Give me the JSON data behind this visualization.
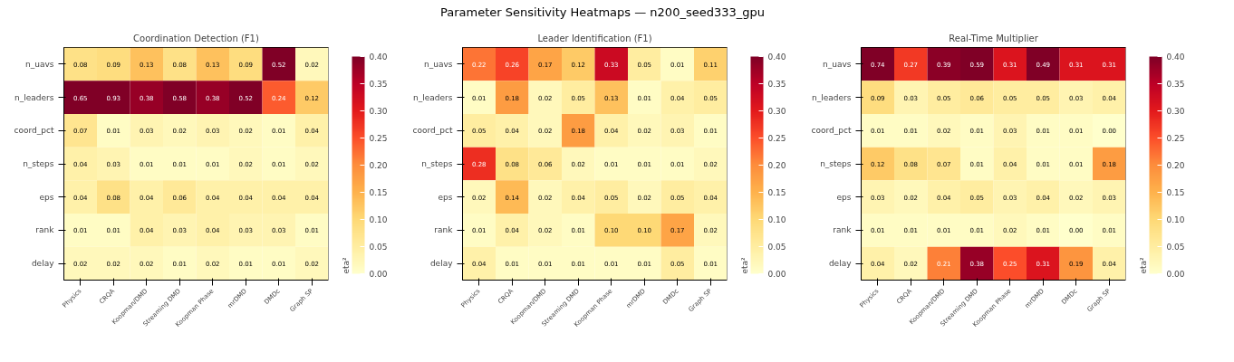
{
  "chart_data": [
    {
      "type": "heatmap",
      "title": "Coordination Detection (F1)",
      "annotations": [
        "Parameter Sensitivity Heatmaps — n200_seed333_gpu"
      ],
      "categories": [
        "Physics",
        "CRQA",
        "Koopman/DMD",
        "Streaming DMD",
        "Koopman Phase",
        "mrDMD",
        "DMDc",
        "Graph SP"
      ],
      "y_categories": [
        "n_uavs",
        "n_leaders",
        "coord_pct",
        "n_steps",
        "eps",
        "rank",
        "delay"
      ],
      "cells": [
        [
          0.08,
          0.09,
          0.13,
          0.08,
          0.13,
          0.09,
          0.52,
          0.02
        ],
        [
          0.65,
          0.93,
          0.38,
          0.58,
          0.38,
          0.52,
          0.24,
          0.12
        ],
        [
          0.07,
          0.01,
          0.03,
          0.02,
          0.03,
          0.02,
          0.01,
          0.04
        ],
        [
          0.04,
          0.03,
          0.01,
          0.01,
          0.01,
          0.02,
          0.01,
          0.02
        ],
        [
          0.04,
          0.08,
          0.04,
          0.06,
          0.04,
          0.04,
          0.04,
          0.04
        ],
        [
          0.01,
          0.01,
          0.04,
          0.03,
          0.04,
          0.03,
          0.03,
          0.01
        ],
        [
          0.02,
          0.02,
          0.02,
          0.01,
          0.02,
          0.01,
          0.01,
          0.02
        ]
      ],
      "data_labels": true,
      "clabel": "eta²",
      "clim": [
        0,
        0.4
      ],
      "cticks": [
        {
          "value": 0,
          "label": "0.00"
        },
        {
          "value": 0.05,
          "label": "0.05"
        },
        {
          "value": 0.1,
          "label": "0.10"
        },
        {
          "value": 0.15,
          "label": "0.15"
        },
        {
          "value": 0.2,
          "label": "0.20"
        },
        {
          "value": 0.25,
          "label": "0.25"
        },
        {
          "value": 0.3,
          "label": "0.30"
        },
        {
          "value": 0.35,
          "label": "0.35"
        },
        {
          "value": 0.4,
          "label": "0.40"
        }
      ]
    },
    {
      "type": "heatmap",
      "title": "Leader Identification (F1)",
      "categories": [
        "Physics",
        "CRQA",
        "Koopman/DMD",
        "Streaming DMD",
        "Koopman Phase",
        "mrDMD",
        "DMDc",
        "Graph SP"
      ],
      "y_categories": [
        "n_uavs",
        "n_leaders",
        "coord_pct",
        "n_steps",
        "eps",
        "rank",
        "delay"
      ],
      "cells": [
        [
          0.22,
          0.26,
          0.17,
          0.12,
          0.33,
          0.05,
          0.01,
          0.11
        ],
        [
          0.01,
          0.18,
          0.02,
          0.05,
          0.13,
          0.01,
          0.04,
          0.05
        ],
        [
          0.05,
          0.04,
          0.02,
          0.18,
          0.04,
          0.02,
          0.03,
          0.01
        ],
        [
          0.28,
          0.08,
          0.06,
          0.02,
          0.01,
          0.01,
          0.01,
          0.02
        ],
        [
          0.02,
          0.14,
          0.02,
          0.04,
          0.05,
          0.02,
          0.05,
          0.04
        ],
        [
          0.01,
          0.04,
          0.02,
          0.01,
          0.1,
          0.1,
          0.17,
          0.02
        ],
        [
          0.04,
          0.01,
          0.01,
          0.01,
          0.01,
          0.01,
          0.05,
          0.01
        ]
      ],
      "cell_labels": [
        [
          "0.22",
          "0.26",
          "0.17",
          "0.12",
          "0.33",
          "0.05",
          "0.01",
          "0.11"
        ],
        [
          "0.01",
          "0.18",
          "0.02",
          "0.05",
          "0.13",
          "0.01",
          "0.04",
          "0.05"
        ],
        [
          "0.05",
          "0.04",
          "0.02",
          "0.18",
          "0.04",
          "0.02",
          "0.03",
          "0.01"
        ],
        [
          "0.28",
          "0.08",
          "0.06",
          "0.02",
          "0.01",
          "0.01",
          "0.01",
          "0.02"
        ],
        [
          "0.02",
          "0.14",
          "0.02",
          "0.04",
          "0.05",
          "0.02",
          "0.05",
          "0.04"
        ],
        [
          "0.01",
          "0.04",
          "0.02",
          "0.01",
          "0.10",
          "0.10",
          "0.17",
          "0.02"
        ],
        [
          "0.04",
          "0.01",
          "0.01",
          "0.01",
          "0.01",
          "0.01",
          "0.05",
          "0.01"
        ]
      ],
      "data_labels": true,
      "clabel": "eta²",
      "clim": [
        0,
        0.4
      ],
      "cticks": [
        {
          "value": 0,
          "label": "0.00"
        },
        {
          "value": 0.05,
          "label": "0.05"
        },
        {
          "value": 0.1,
          "label": "0.10"
        },
        {
          "value": 0.15,
          "label": "0.15"
        },
        {
          "value": 0.2,
          "label": "0.20"
        },
        {
          "value": 0.25,
          "label": "0.25"
        },
        {
          "value": 0.3,
          "label": "0.30"
        },
        {
          "value": 0.35,
          "label": "0.35"
        },
        {
          "value": 0.4,
          "label": "0.40"
        }
      ]
    },
    {
      "type": "heatmap",
      "title": "Real-Time Multiplier",
      "categories": [
        "Physics",
        "CRQA",
        "Koopman/DMD",
        "Streaming DMD",
        "Koopman Phase",
        "mrDMD",
        "DMDc",
        "Graph SP"
      ],
      "y_categories": [
        "n_uavs",
        "n_leaders",
        "coord_pct",
        "n_steps",
        "eps",
        "rank",
        "delay"
      ],
      "cells": [
        [
          0.74,
          0.27,
          0.39,
          0.59,
          0.31,
          0.49,
          0.31,
          0.31
        ],
        [
          0.09,
          0.03,
          0.05,
          0.06,
          0.05,
          0.05,
          0.03,
          0.04
        ],
        [
          0.01,
          0.01,
          0.02,
          0.01,
          0.03,
          0.01,
          0.01,
          0.0
        ],
        [
          0.12,
          0.08,
          0.07,
          0.01,
          0.04,
          0.01,
          0.01,
          0.18
        ],
        [
          0.03,
          0.02,
          0.04,
          0.05,
          0.03,
          0.04,
          0.02,
          0.03
        ],
        [
          0.01,
          0.01,
          0.01,
          0.01,
          0.02,
          0.01,
          0.0,
          0.01
        ],
        [
          0.04,
          0.02,
          0.21,
          0.38,
          0.25,
          0.31,
          0.19,
          0.04
        ]
      ],
      "cell_labels": [
        [
          "0.74",
          "0.27",
          "0.39",
          "0.59",
          "0.31",
          "0.49",
          "0.31",
          "0.31"
        ],
        [
          "0.09",
          "0.03",
          "0.05",
          "0.06",
          "0.05",
          "0.05",
          "0.03",
          "0.04"
        ],
        [
          "0.01",
          "0.01",
          "0.02",
          "0.01",
          "0.03",
          "0.01",
          "0.01",
          "0.00"
        ],
        [
          "0.12",
          "0.08",
          "0.07",
          "0.01",
          "0.04",
          "0.01",
          "0.01",
          "0.18"
        ],
        [
          "0.03",
          "0.02",
          "0.04",
          "0.05",
          "0.03",
          "0.04",
          "0.02",
          "0.03"
        ],
        [
          "0.01",
          "0.01",
          "0.01",
          "0.01",
          "0.02",
          "0.01",
          "0.00",
          "0.01"
        ],
        [
          "0.04",
          "0.02",
          "0.21",
          "0.38",
          "0.25",
          "0.31",
          "0.19",
          "0.04"
        ]
      ],
      "data_labels": true,
      "clabel": "eta²",
      "clim": [
        0,
        0.4
      ],
      "cticks": [
        {
          "value": 0,
          "label": "0.00"
        },
        {
          "value": 0.05,
          "label": "0.05"
        },
        {
          "value": 0.1,
          "label": "0.10"
        },
        {
          "value": 0.15,
          "label": "0.15"
        },
        {
          "value": 0.2,
          "label": "0.20"
        },
        {
          "value": 0.25,
          "label": "0.25"
        },
        {
          "value": 0.3,
          "label": "0.30"
        },
        {
          "value": 0.35,
          "label": "0.35"
        },
        {
          "value": 0.4,
          "label": "0.40"
        }
      ]
    }
  ]
}
